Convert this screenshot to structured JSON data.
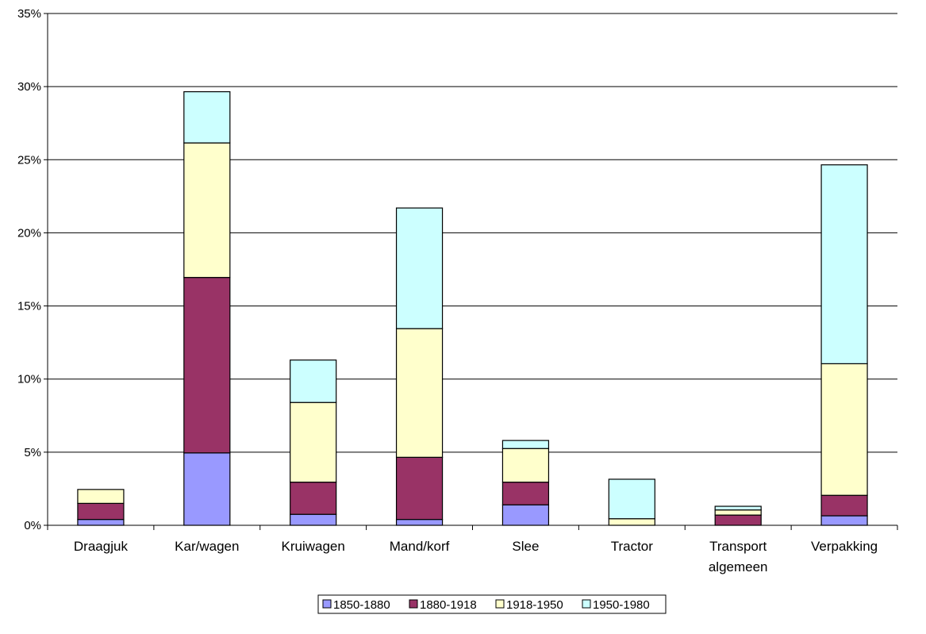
{
  "chart_data": {
    "type": "bar",
    "stacked": true,
    "categories": [
      [
        "Draagjuk"
      ],
      [
        "Kar/wagen"
      ],
      [
        "Kruiwagen"
      ],
      [
        "Mand/korf"
      ],
      [
        "Slee"
      ],
      [
        "Tractor"
      ],
      [
        "Transport",
        "algemeen"
      ],
      [
        "Verpakking"
      ]
    ],
    "series": [
      {
        "name": "1850-1880",
        "color": "#9999ff",
        "values": [
          0.4,
          4.95,
          0.75,
          0.4,
          1.4,
          0.0,
          0.0,
          0.65
        ]
      },
      {
        "name": "1880-1918",
        "color": "#993366",
        "values": [
          1.1,
          12.0,
          2.2,
          4.25,
          1.55,
          0.0,
          0.7,
          1.4
        ]
      },
      {
        "name": "1918-1950",
        "color": "#ffffcc",
        "values": [
          0.95,
          9.2,
          5.45,
          8.8,
          2.3,
          0.45,
          0.35,
          9.0
        ]
      },
      {
        "name": "1950-1980",
        "color": "#ccffff",
        "values": [
          0.0,
          3.5,
          2.9,
          8.25,
          0.55,
          2.7,
          0.25,
          13.6
        ]
      }
    ],
    "ylim": [
      0,
      35
    ],
    "yticks": [
      0,
      5,
      10,
      15,
      20,
      25,
      30,
      35
    ],
    "ytick_labels": [
      "0%",
      "5%",
      "10%",
      "15%",
      "20%",
      "25%",
      "30%",
      "35%"
    ],
    "grid": true,
    "legend_position": "bottom"
  }
}
